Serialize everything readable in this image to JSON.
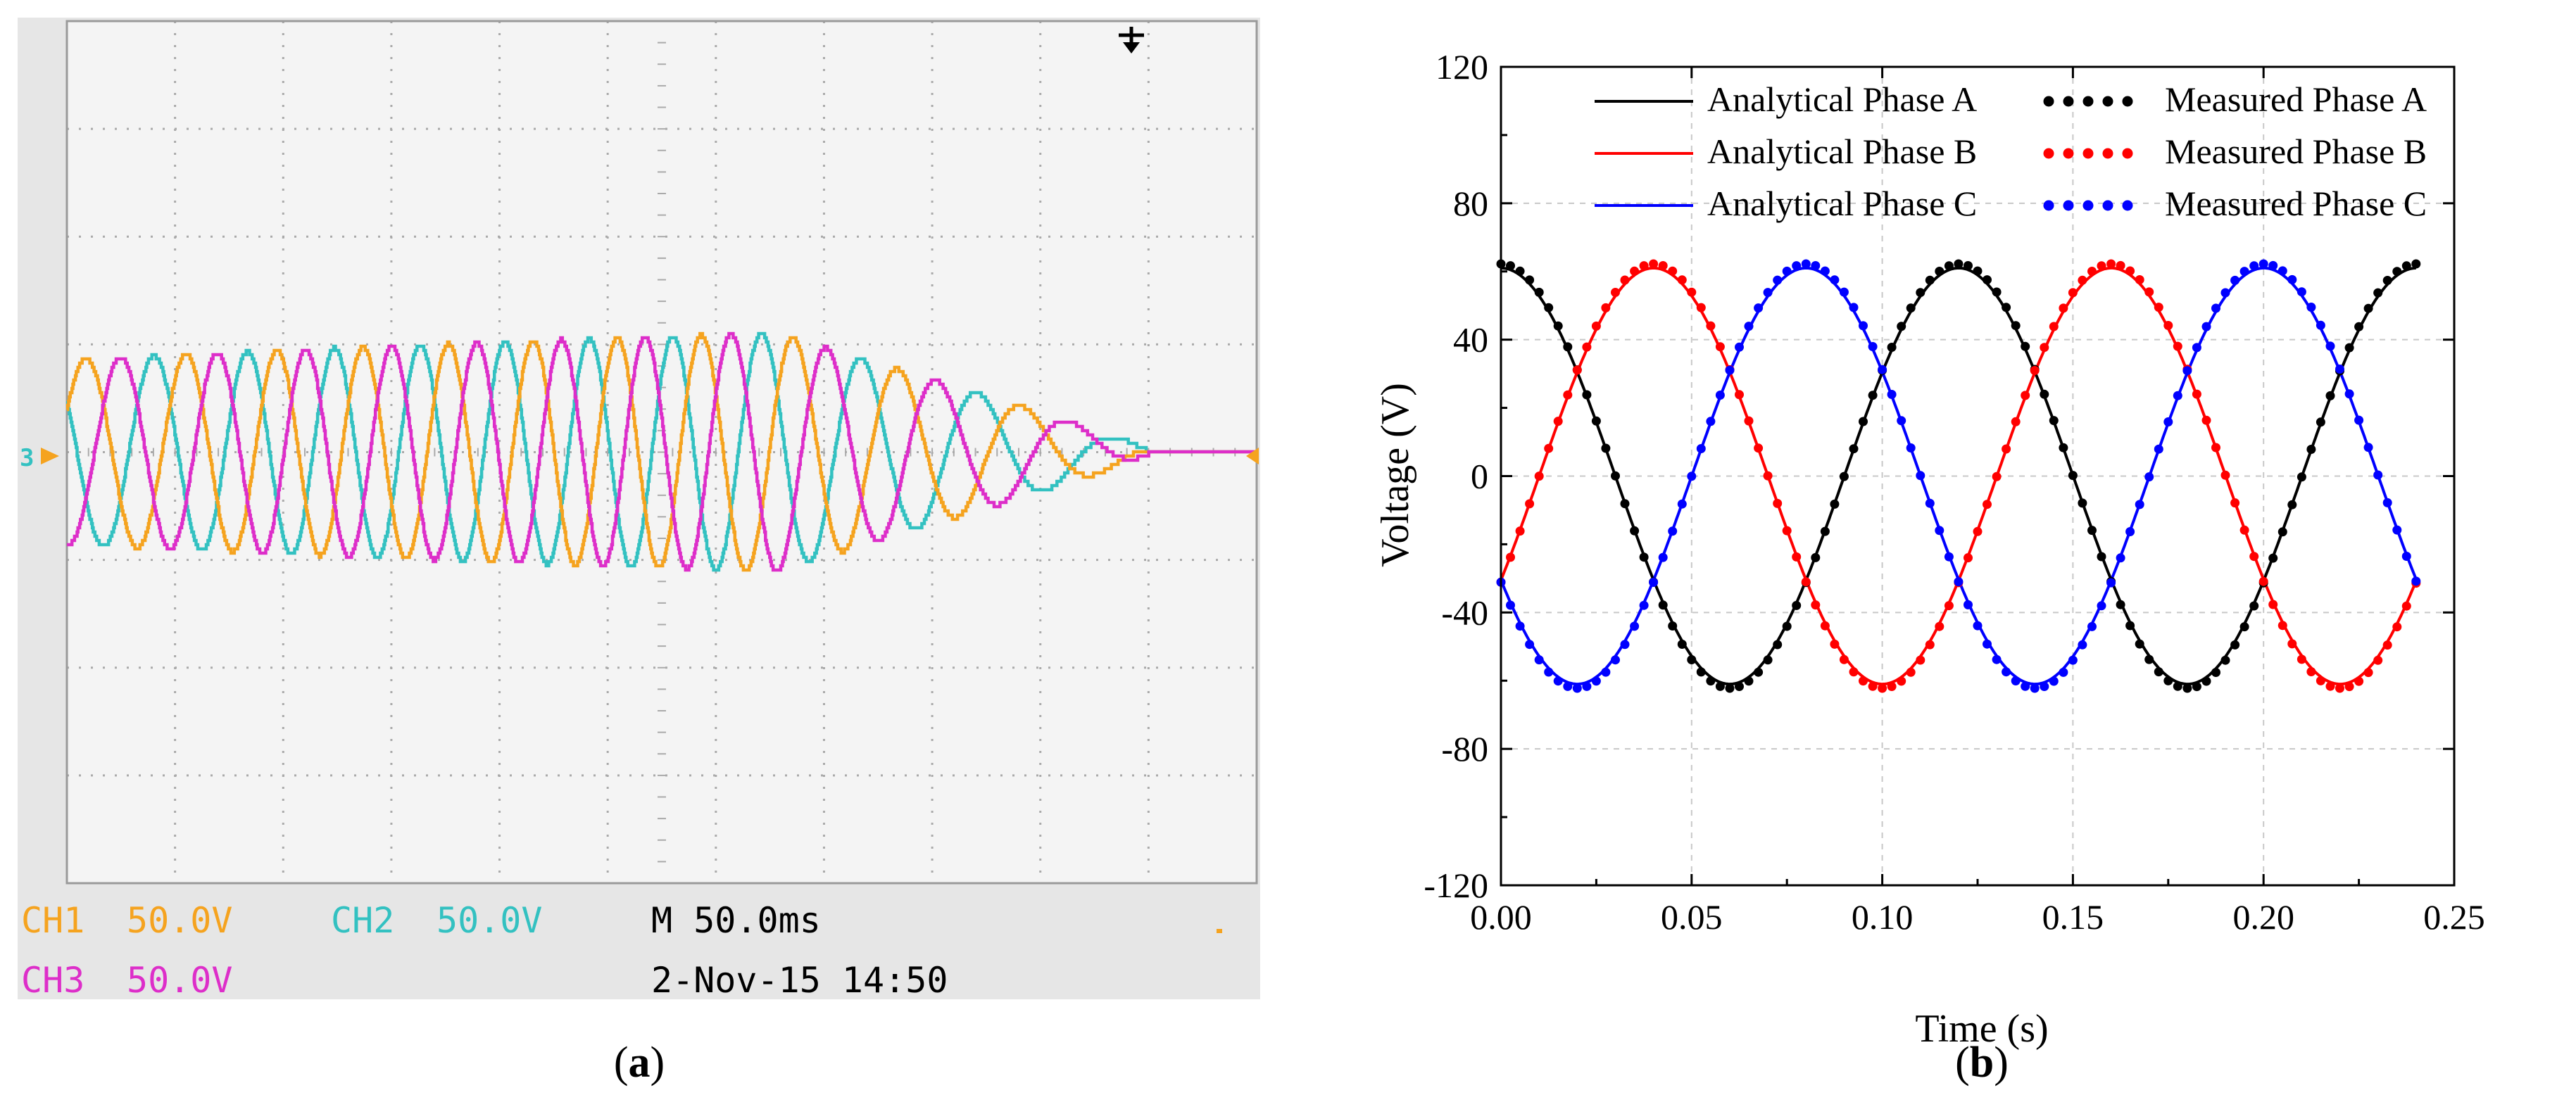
{
  "panel_a": {
    "caption_letter": "a",
    "channels": [
      {
        "name": "CH1",
        "scale": "50.0V",
        "color": "#f5a31f"
      },
      {
        "name": "CH2",
        "scale": "50.0V",
        "color": "#33c1c1"
      },
      {
        "name": "CH3",
        "scale": "50.0V",
        "color": "#dd2ec9"
      }
    ],
    "timebase": "M 50.0ms",
    "date": "2-Nov-15 14:50",
    "ground_marker": "3",
    "trigger_marker": "T",
    "divisions": {
      "horizontal": 11,
      "vertical": 8
    },
    "volts_per_div": 50,
    "screen_bg": "#f4f4f4",
    "grid_color": "#aaaaaa",
    "readout_bg": "#e6e6e6"
  },
  "chart_data": {
    "type": "line",
    "caption_letter": "b",
    "xlabel": "Time (s)",
    "ylabel": "Voltage (V)",
    "xlim": [
      0,
      0.25
    ],
    "ylim": [
      -120,
      120
    ],
    "xticks": [
      0.0,
      0.05,
      0.1,
      0.15,
      0.2,
      0.25
    ],
    "xtick_labels": [
      "0.00",
      "0.05",
      "0.10",
      "0.15",
      "0.20",
      "0.25"
    ],
    "yticks": [
      -120,
      -80,
      -40,
      0,
      40,
      80,
      120
    ],
    "ytick_labels": [
      "-120",
      "-80",
      "-40",
      "0",
      "40",
      "80",
      "120"
    ],
    "grid": true,
    "legend_position": "top-right",
    "frequency_hz": 8.33,
    "amplitude_v": 61,
    "x_range": [
      0,
      0.24
    ],
    "series": [
      {
        "name": "Analytical Phase A",
        "kind": "line",
        "phase_deg": 90,
        "color": "#000000"
      },
      {
        "name": "Measured Phase A",
        "kind": "dots",
        "phase_deg": 90,
        "color": "#000000"
      },
      {
        "name": "Analytical Phase B",
        "kind": "line",
        "phase_deg": -30,
        "color": "#ff0000"
      },
      {
        "name": "Measured Phase B",
        "kind": "dots",
        "phase_deg": -30,
        "color": "#ff0000"
      },
      {
        "name": "Analytical Phase C",
        "kind": "line",
        "phase_deg": 210,
        "color": "#0000ff"
      },
      {
        "name": "Measured Phase C",
        "kind": "dots",
        "phase_deg": 210,
        "color": "#0000ff"
      }
    ]
  }
}
